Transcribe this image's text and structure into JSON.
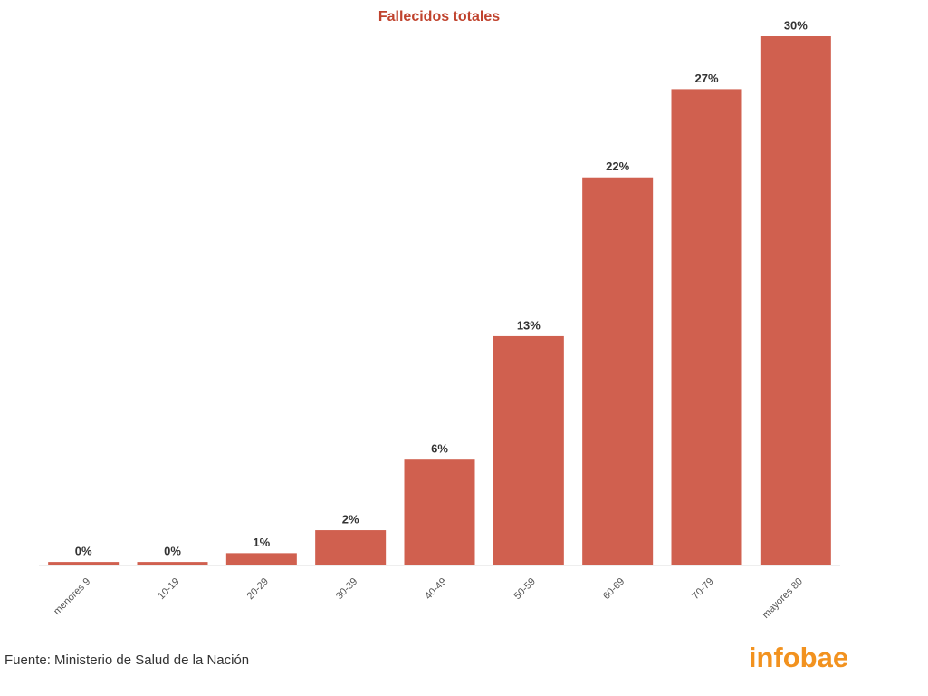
{
  "chart_data": {
    "type": "bar",
    "title": "Fallecidos totales",
    "categories": [
      "menores 9",
      "10-19",
      "20-29",
      "30-39",
      "40-49",
      "50-59",
      "60-69",
      "70-79",
      "mayores 80"
    ],
    "values": [
      0.2,
      0.2,
      0.7,
      2,
      6,
      13,
      22,
      27,
      30
    ],
    "value_labels": [
      "0%",
      "0%",
      "1%",
      "2%",
      "6%",
      "13%",
      "22%",
      "27%",
      "30%"
    ],
    "color": "#d0604f"
  },
  "source": "Fuente: Ministerio de Salud de la Nación",
  "logo": "infobae"
}
